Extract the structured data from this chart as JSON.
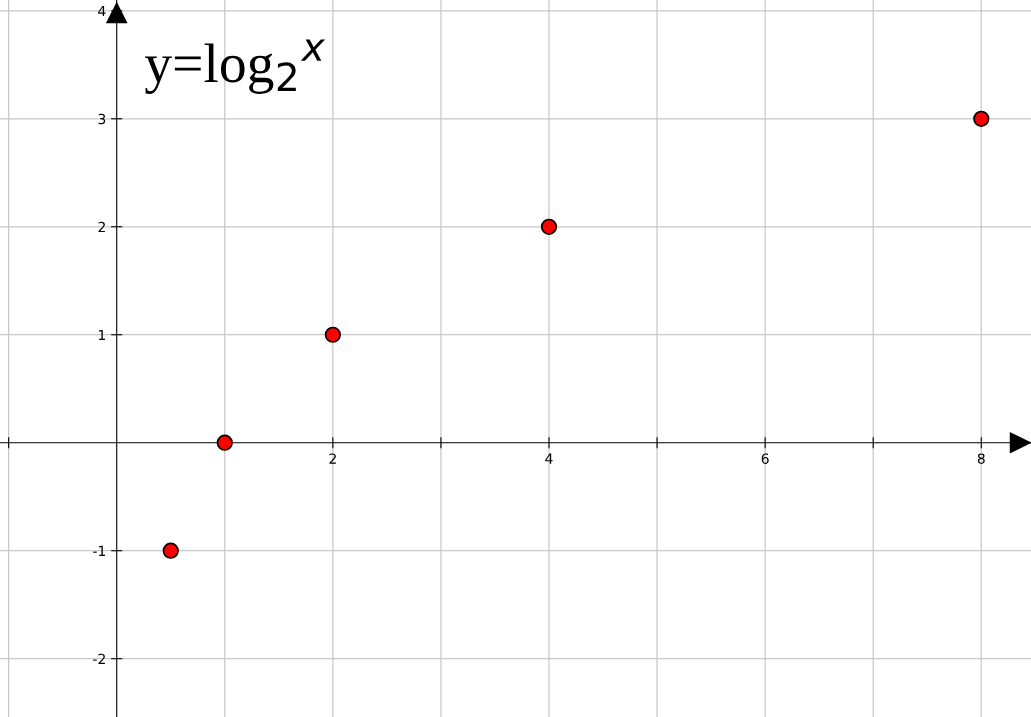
{
  "chart_data": {
    "type": "scatter",
    "title": "y=log$_{2}$$^{x}$",
    "x": [
      0.5,
      1,
      2,
      4,
      8
    ],
    "series": [
      {
        "color": "#ff0000",
        "values": [
          -1,
          0,
          1,
          2,
          3
        ]
      }
    ],
    "marker": "circle",
    "xlim": [
      -1.08,
      8.46
    ],
    "ylim": [
      -2.54,
      4.1
    ],
    "xticks": [
      {
        "value": -1,
        "label": null
      },
      {
        "value": 1,
        "label": null
      },
      2,
      {
        "value": 3,
        "label": null
      },
      4,
      {
        "value": 5,
        "label": null
      },
      6,
      {
        "value": 7,
        "label": null
      },
      8
    ],
    "yticks": [
      -2,
      -1,
      1,
      2,
      3,
      4
    ],
    "grid": true,
    "legend": false
  }
}
